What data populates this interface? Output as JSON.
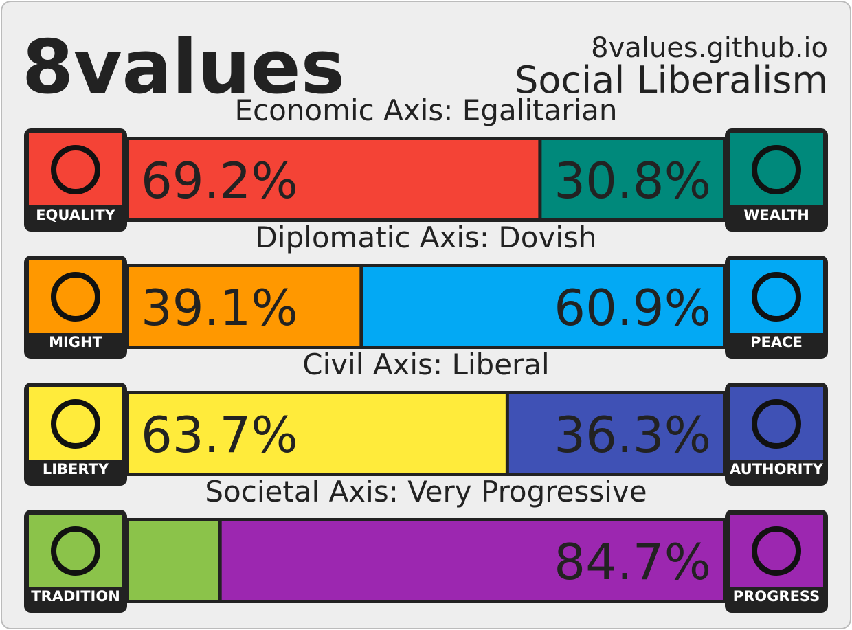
{
  "header": {
    "title": "8values",
    "site": "8values.github.io",
    "ideology": "Social Liberalism"
  },
  "chart_data": {
    "type": "split-bar",
    "axes": [
      {
        "title": "Economic Axis: Egalitarian",
        "left": {
          "name": "EQUALITY",
          "color": "#f44336",
          "value": 69.2,
          "value_label": "69.2%"
        },
        "right": {
          "name": "WEALTH",
          "color": "#00897b",
          "value": 30.8,
          "value_label": "30.8%"
        }
      },
      {
        "title": "Diplomatic Axis: Dovish",
        "left": {
          "name": "MIGHT",
          "color": "#ff9800",
          "value": 39.1,
          "value_label": "39.1%"
        },
        "right": {
          "name": "PEACE",
          "color": "#03a9f4",
          "value": 60.9,
          "value_label": "60.9%"
        }
      },
      {
        "title": "Civil Axis: Liberal",
        "left": {
          "name": "LIBERTY",
          "color": "#ffeb3b",
          "value": 63.7,
          "value_label": "63.7%"
        },
        "right": {
          "name": "AUTHORITY",
          "color": "#3f51b5",
          "value": 36.3,
          "value_label": "36.3%"
        }
      },
      {
        "title": "Societal Axis: Very Progressive",
        "left": {
          "name": "TRADITION",
          "color": "#8bc34a",
          "value": 15.3
        },
        "right": {
          "name": "PROGRESS",
          "color": "#9c27b0",
          "value": 84.7,
          "value_label": "84.7%"
        }
      }
    ]
  }
}
